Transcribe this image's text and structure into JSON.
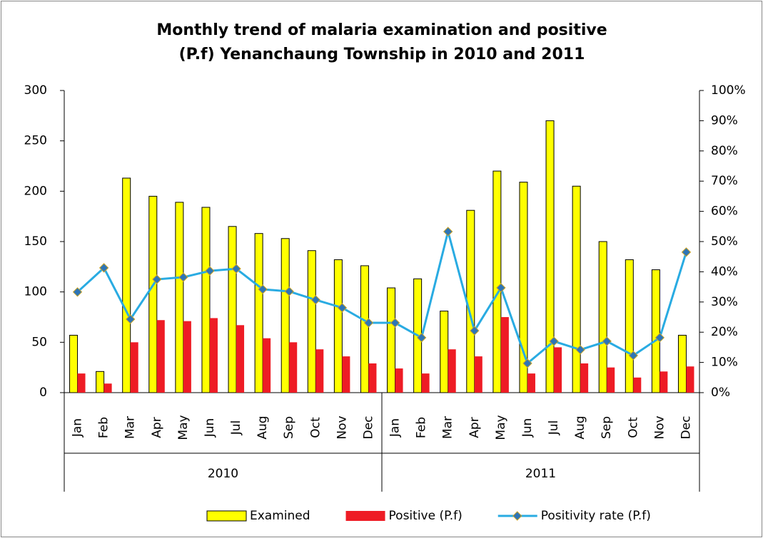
{
  "chart_data": {
    "type": "bar-line",
    "title": "Monthly trend of malaria examination and positive (P.f) Yenanchaung Township in 2010 and 2011",
    "categories": [
      "Jan",
      "Feb",
      "Mar",
      "Apr",
      "May",
      "Jun",
      "Jul",
      "Aug",
      "Sep",
      "Oct",
      "Nov",
      "Dec",
      "Jan",
      "Feb",
      "Mar",
      "Apr",
      "May",
      "Jun",
      "Jul",
      "Aug",
      "Sep",
      "Oct",
      "Nov",
      "Dec"
    ],
    "groups": [
      "2010",
      "2011"
    ],
    "series": [
      {
        "name": "Examined",
        "type": "bar",
        "color": "#ffff00",
        "values": [
          57,
          21,
          213,
          195,
          189,
          184,
          165,
          158,
          153,
          141,
          132,
          126,
          104,
          113,
          81,
          181,
          220,
          209,
          270,
          205,
          150,
          132,
          122,
          57
        ]
      },
      {
        "name": "Positive (P.f)",
        "type": "bar",
        "color": "#ee1c25",
        "values": [
          19,
          9,
          50,
          72,
          71,
          74,
          67,
          54,
          50,
          43,
          36,
          29,
          24,
          19,
          43,
          36,
          75,
          19,
          45,
          29,
          25,
          15,
          21,
          26
        ]
      },
      {
        "name": "Positivity rate (P.f)",
        "type": "line",
        "axis": "y2",
        "color": "#29abe2",
        "values": [
          33.3,
          41.3,
          24.3,
          37.5,
          38.2,
          40.3,
          41,
          34.2,
          33.5,
          30.7,
          28.1,
          23.1,
          23.1,
          18.2,
          53.3,
          20.5,
          34.7,
          9.7,
          17,
          14.2,
          17,
          12.3,
          18.2,
          46.5
        ]
      }
    ],
    "ylim": [
      0,
      300
    ],
    "yticks": [
      0,
      50,
      100,
      150,
      200,
      250,
      300
    ],
    "y2lim": [
      0,
      100
    ],
    "y2ticks": [
      {
        "value": 0,
        "label": "0%"
      },
      {
        "value": 10,
        "label": "10%"
      },
      {
        "value": 20,
        "label": "20%"
      },
      {
        "value": 30,
        "label": "30%"
      },
      {
        "value": 40,
        "label": "40%"
      },
      {
        "value": 50,
        "label": "50%"
      },
      {
        "value": 60,
        "label": "60%"
      },
      {
        "value": 70,
        "label": "70%"
      },
      {
        "value": 80,
        "label": "80%"
      },
      {
        "value": 90,
        "label": "90%"
      },
      {
        "value": 100,
        "label": "100%"
      }
    ],
    "legend": "bottom"
  }
}
